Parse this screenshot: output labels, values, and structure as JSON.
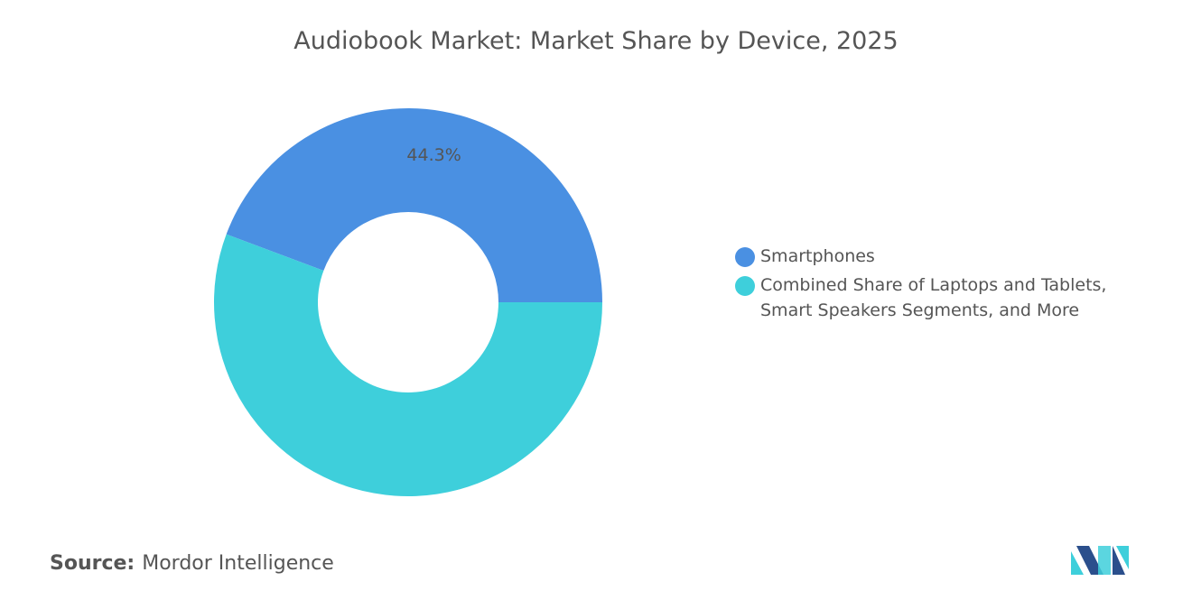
{
  "chart_data": {
    "type": "donut",
    "title": "Audiobook Market: Market Share by Device, 2025",
    "categories": [
      "Smartphones",
      "Combined Share of Laptops and Tablets, Smart Speakers Segments, and More"
    ],
    "values": [
      44.3,
      55.7
    ],
    "value_labels": [
      "44.3%",
      null
    ],
    "colors": [
      "#4a90e2",
      "#3ecfdb"
    ]
  },
  "source": {
    "label": "Source:",
    "text": "Mordor Intelligence"
  }
}
